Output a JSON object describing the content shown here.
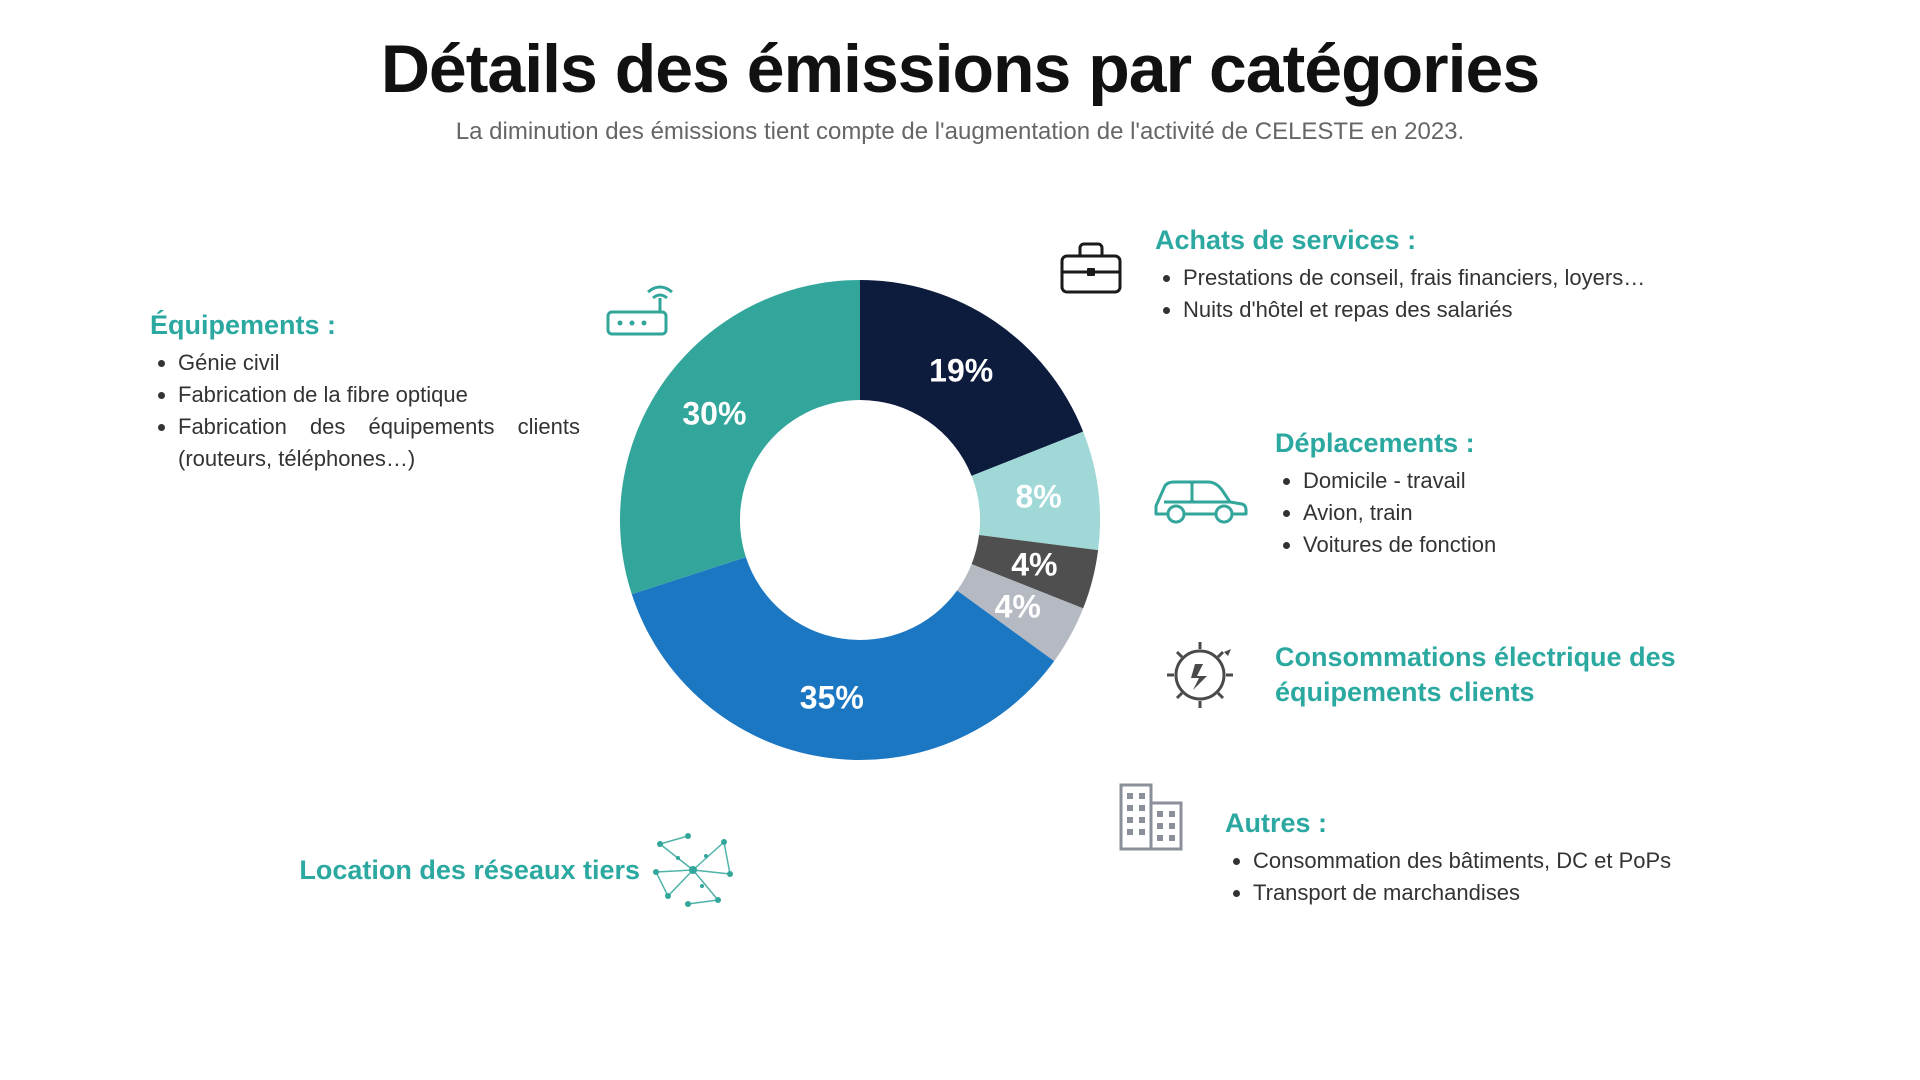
{
  "title": "Détails des émissions par catégories",
  "subtitle": "La diminution des émissions tient compte de l'augmentation de l'activité de CELESTE en 2023.",
  "chart": {
    "type": "donut",
    "inner_radius_ratio": 0.5,
    "outer_radius": 240,
    "background_color": "#ffffff",
    "label_fontsize": 32,
    "label_fontweight": 700,
    "label_color": "#ffffff",
    "slices": [
      {
        "id": "achats",
        "label": "19%",
        "value": 19,
        "color": "#0d1b3d"
      },
      {
        "id": "deplacements",
        "label": "8%",
        "value": 8,
        "color": "#9fd8d6"
      },
      {
        "id": "conso",
        "label": "4%",
        "value": 4,
        "color": "#4f4f4f"
      },
      {
        "id": "autres",
        "label": "4%",
        "value": 4,
        "color": "#b5b9c2"
      },
      {
        "id": "location",
        "label": "35%",
        "value": 35,
        "color": "#1c77c3"
      },
      {
        "id": "equipements",
        "label": "30%",
        "value": 30,
        "color": "#32a69b"
      }
    ]
  },
  "legends": {
    "equipements": {
      "title": "Équipements :",
      "items": [
        "Génie civil",
        "Fabrication de la fibre optique",
        "Fabrication des équipements clients (routeurs, téléphones…)"
      ],
      "icon": "router-icon",
      "icon_color": "#32a69b"
    },
    "achats": {
      "title": "Achats de services :",
      "items": [
        "Prestations de conseil, frais financiers, loyers…",
        "Nuits d'hôtel et repas des salariés"
      ],
      "icon": "briefcase-icon",
      "icon_color": "#1a1a1a"
    },
    "deplacements": {
      "title": "Déplacements :",
      "items": [
        "Domicile - travail",
        "Avion, train",
        "Voitures de fonction"
      ],
      "icon": "car-icon",
      "icon_color": "#32a69b"
    },
    "conso": {
      "title": "Consommations électrique des équipements clients",
      "items": [],
      "icon": "bulb-icon",
      "icon_color": "#4a4a4a"
    },
    "autres": {
      "title": "Autres :",
      "items": [
        "Consommation des bâtiments, DC et PoPs",
        "Transport de marchandises"
      ],
      "icon": "buildings-icon",
      "icon_color": "#8a8f9a"
    },
    "location": {
      "title": "Location des réseaux tiers",
      "items": [],
      "icon": "network-icon",
      "icon_color": "#32a69b"
    }
  },
  "colors": {
    "accent": "#2ba9a0",
    "text": "#333333",
    "title": "#111111"
  }
}
